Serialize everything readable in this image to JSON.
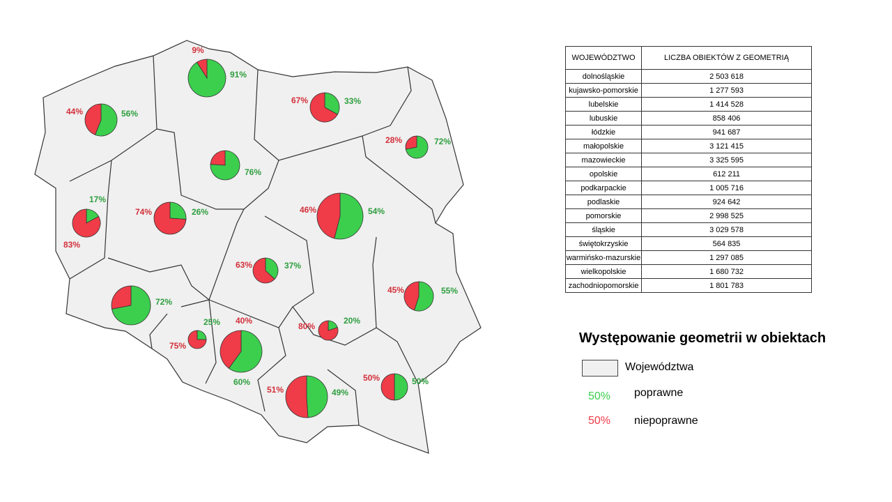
{
  "map": {
    "colors": {
      "correct": "#3ccf4e",
      "incorrect": "#f03c48",
      "correct_label": "#2e9e3e",
      "incorrect_label": "#d3303a"
    },
    "pies": [
      {
        "values": [
          56,
          44
        ],
        "value_labels": [
          "56%",
          "44%"
        ]
      },
      {
        "values": [
          91,
          9
        ],
        "value_labels": [
          "91%",
          "9%"
        ]
      },
      {
        "values": [
          33,
          67
        ],
        "value_labels": [
          "33%",
          "67%"
        ]
      },
      {
        "values": [
          72,
          28
        ],
        "value_labels": [
          "72%",
          "28%"
        ]
      },
      {
        "values": [
          76,
          24
        ],
        "value_labels": [
          "76%",
          null
        ]
      },
      {
        "values": [
          17,
          83
        ],
        "value_labels": [
          "17%",
          "83%"
        ]
      },
      {
        "values": [
          26,
          74
        ],
        "value_labels": [
          "26%",
          "74%"
        ]
      },
      {
        "values": [
          54,
          46
        ],
        "value_labels": [
          "54%",
          "46%"
        ]
      },
      {
        "values": [
          37,
          63
        ],
        "value_labels": [
          "37%",
          "63%"
        ]
      },
      {
        "values": [
          55,
          45
        ],
        "value_labels": [
          "55%",
          "45%"
        ]
      },
      {
        "values": [
          72,
          28
        ],
        "value_labels": [
          "72%",
          null
        ]
      },
      {
        "values": [
          25,
          75
        ],
        "value_labels": [
          "25%",
          "75%"
        ]
      },
      {
        "values": [
          60,
          40
        ],
        "value_labels": [
          "60%",
          "40%"
        ]
      },
      {
        "values": [
          20,
          80
        ],
        "value_labels": [
          "20%",
          "80%"
        ]
      },
      {
        "values": [
          49,
          51
        ],
        "value_labels": [
          "49%",
          "51%"
        ]
      },
      {
        "values": [
          50,
          50
        ],
        "value_labels": [
          "50%",
          "50%"
        ]
      }
    ]
  },
  "table": {
    "headers": [
      "WOJEWÓDZTWO",
      "LICZBA OBIEKTÓW Z GEOMETRIĄ"
    ],
    "rows": [
      [
        "dolnośląskie",
        "2 503 618"
      ],
      [
        "kujawsko-pomorskie",
        "1 277 593"
      ],
      [
        "lubelskie",
        "1 414 528"
      ],
      [
        "lubuskie",
        "858 406"
      ],
      [
        "łódzkie",
        "941 687"
      ],
      [
        "małopolskie",
        "3 121 415"
      ],
      [
        "mazowieckie",
        "3 325 595"
      ],
      [
        "opolskie",
        "612 211"
      ],
      [
        "podkarpackie",
        "1 005 716"
      ],
      [
        "podlaskie",
        "924 642"
      ],
      [
        "pomorskie",
        "2 998 525"
      ],
      [
        "śląskie",
        "3 029 578"
      ],
      [
        "świętokrzyskie",
        "564 835"
      ],
      [
        "warmińsko-mazurskie",
        "1 297 085"
      ],
      [
        "wielkopolskie",
        "1 680 732"
      ],
      [
        "zachodniopomorskie",
        "1 801 783"
      ]
    ]
  },
  "legend": {
    "title": "Występowanie geometrii w obiektach",
    "region": "Województwa",
    "items": [
      {
        "sample": "50%",
        "label": "poprawne"
      },
      {
        "sample": "50%",
        "label": "niepoprawne"
      }
    ]
  }
}
